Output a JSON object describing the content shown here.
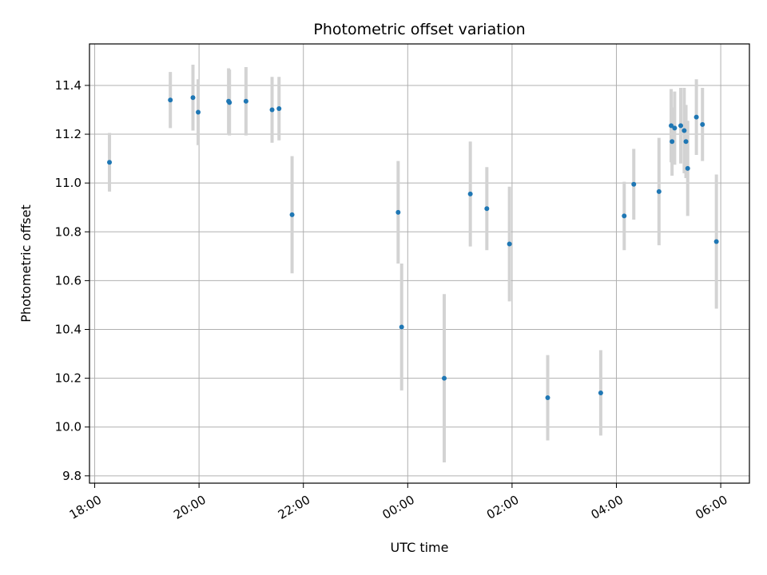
{
  "chart_data": {
    "type": "scatter",
    "title": "Photometric offset variation",
    "xlabel": "UTC time",
    "ylabel": "Photometric offset",
    "x_ticks": [
      "18:00",
      "20:00",
      "22:00",
      "00:00",
      "02:00",
      "04:00",
      "06:00"
    ],
    "y_ticks": [
      "9.8",
      "10.0",
      "10.2",
      "10.4",
      "10.6",
      "10.8",
      "11.0",
      "11.2",
      "11.4"
    ],
    "xlim_hours": [
      17.9,
      30.55
    ],
    "ylim": [
      9.77,
      11.57
    ],
    "grid": true,
    "point_color": "#1f77b4",
    "errorbar_color": "#d3d3d3",
    "series": [
      {
        "x": [
          "18:17",
          "19:27",
          "19:53",
          "19:59",
          "20:34",
          "20:35",
          "20:54",
          "21:24",
          "21:32",
          "21:47",
          "23:49",
          "23:53",
          "00:42",
          "01:12",
          "01:31",
          "01:57",
          "02:41",
          "03:42",
          "04:09",
          "04:20",
          "04:49",
          "05:03",
          "05:04",
          "05:07",
          "05:14",
          "05:18",
          "05:20",
          "05:22",
          "05:32",
          "05:39",
          "05:55"
        ],
        "y": [
          11.085,
          11.34,
          11.35,
          11.29,
          11.335,
          11.33,
          11.335,
          11.3,
          11.305,
          10.87,
          10.88,
          10.41,
          10.2,
          10.955,
          10.895,
          10.75,
          10.12,
          10.14,
          10.865,
          10.995,
          10.965,
          11.235,
          11.17,
          11.225,
          11.235,
          11.215,
          11.17,
          11.06,
          11.27,
          11.24,
          10.76
        ],
        "yerr": [
          0.12,
          0.115,
          0.135,
          0.135,
          0.135,
          0.135,
          0.14,
          0.135,
          0.13,
          0.24,
          0.21,
          0.26,
          0.345,
          0.215,
          0.17,
          0.235,
          0.175,
          0.175,
          0.14,
          0.145,
          0.22,
          0.15,
          0.14,
          0.15,
          0.155,
          0.175,
          0.15,
          0.195,
          0.155,
          0.15,
          0.275
        ]
      }
    ]
  }
}
